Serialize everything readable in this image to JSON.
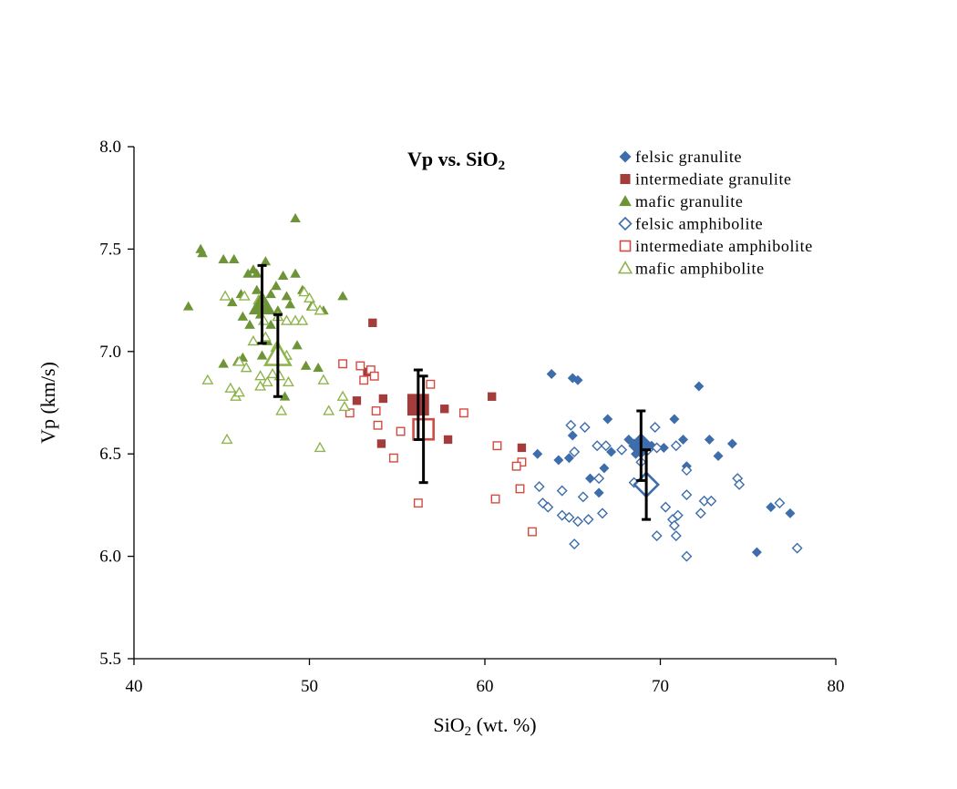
{
  "chart_data": {
    "type": "scatter",
    "title": "Vp vs. SiO",
    "title_sub": "2",
    "xlabel_prefix": "SiO",
    "xlabel_sub": "2",
    "xlabel_suffix": " (wt. %)",
    "ylabel": "Vp (km/s)",
    "xlim": [
      40,
      80
    ],
    "ylim": [
      5.5,
      8.0
    ],
    "x_ticks": [
      "40",
      "50",
      "60",
      "70",
      "80"
    ],
    "y_ticks": [
      "5.5",
      "6.0",
      "6.5",
      "7.0",
      "7.5",
      "8.0"
    ],
    "grid": false,
    "legend_position": "top-right",
    "series": [
      {
        "name": "felsic granulite",
        "marker": "diamond",
        "filled": true,
        "color": "#3d6dab",
        "points": [
          [
            63.8,
            6.89
          ],
          [
            65.0,
            6.87
          ],
          [
            65.3,
            6.86
          ],
          [
            72.2,
            6.83
          ],
          [
            67.0,
            6.67
          ],
          [
            70.8,
            6.67
          ],
          [
            63.0,
            6.5
          ],
          [
            64.2,
            6.47
          ],
          [
            64.8,
            6.48
          ],
          [
            65.0,
            6.59
          ],
          [
            66.0,
            6.38
          ],
          [
            66.5,
            6.31
          ],
          [
            66.8,
            6.43
          ],
          [
            67.2,
            6.51
          ],
          [
            68.2,
            6.57
          ],
          [
            68.5,
            6.55
          ],
          [
            68.6,
            6.5
          ],
          [
            69.0,
            6.52
          ],
          [
            69.5,
            6.54
          ],
          [
            70.2,
            6.53
          ],
          [
            71.3,
            6.57
          ],
          [
            71.5,
            6.44
          ],
          [
            72.8,
            6.57
          ],
          [
            73.3,
            6.49
          ],
          [
            74.1,
            6.55
          ],
          [
            75.5,
            6.02
          ],
          [
            76.3,
            6.24
          ],
          [
            77.4,
            6.21
          ]
        ]
      },
      {
        "name": "intermediate granulite",
        "marker": "square",
        "filled": true,
        "color": "#a33c3a",
        "points": [
          [
            53.6,
            7.14
          ],
          [
            53.3,
            6.9
          ],
          [
            52.7,
            6.76
          ],
          [
            54.2,
            6.77
          ],
          [
            54.1,
            6.55
          ],
          [
            57.7,
            6.72
          ],
          [
            57.9,
            6.57
          ],
          [
            60.4,
            6.78
          ],
          [
            62.1,
            6.53
          ]
        ]
      },
      {
        "name": "mafic granulite",
        "marker": "triangle",
        "filled": true,
        "color": "#6e9438",
        "points": [
          [
            49.2,
            7.65
          ],
          [
            43.8,
            7.5
          ],
          [
            43.9,
            7.48
          ],
          [
            45.1,
            7.45
          ],
          [
            45.7,
            7.45
          ],
          [
            46.8,
            7.4
          ],
          [
            47.5,
            7.44
          ],
          [
            46.5,
            7.38
          ],
          [
            47.0,
            7.38
          ],
          [
            48.5,
            7.37
          ],
          [
            49.2,
            7.38
          ],
          [
            48.1,
            7.32
          ],
          [
            45.6,
            7.24
          ],
          [
            46.1,
            7.28
          ],
          [
            47.0,
            7.3
          ],
          [
            47.8,
            7.28
          ],
          [
            48.7,
            7.27
          ],
          [
            49.6,
            7.3
          ],
          [
            51.9,
            7.27
          ],
          [
            43.1,
            7.22
          ],
          [
            46.2,
            7.17
          ],
          [
            46.6,
            7.13
          ],
          [
            47.2,
            7.18
          ],
          [
            48.2,
            7.2
          ],
          [
            48.9,
            7.23
          ],
          [
            50.1,
            7.22
          ],
          [
            50.8,
            7.2
          ],
          [
            47.6,
            7.05
          ],
          [
            47.8,
            7.13
          ],
          [
            49.3,
            7.03
          ],
          [
            46.2,
            6.97
          ],
          [
            45.9,
            6.95
          ],
          [
            45.1,
            6.94
          ],
          [
            47.3,
            6.98
          ],
          [
            49.8,
            6.93
          ],
          [
            50.5,
            6.92
          ],
          [
            48.6,
            6.78
          ]
        ]
      },
      {
        "name": "felsic amphibolite",
        "marker": "diamond",
        "filled": false,
        "color": "#3d6dab",
        "points": [
          [
            64.9,
            6.64
          ],
          [
            65.7,
            6.63
          ],
          [
            69.7,
            6.63
          ],
          [
            66.4,
            6.54
          ],
          [
            66.9,
            6.54
          ],
          [
            67.8,
            6.52
          ],
          [
            68.8,
            6.56
          ],
          [
            69.3,
            6.52
          ],
          [
            69.8,
            6.53
          ],
          [
            70.9,
            6.54
          ],
          [
            65.1,
            6.51
          ],
          [
            71.5,
            6.42
          ],
          [
            68.9,
            6.46
          ],
          [
            63.1,
            6.34
          ],
          [
            64.4,
            6.32
          ],
          [
            65.6,
            6.29
          ],
          [
            66.5,
            6.38
          ],
          [
            68.5,
            6.36
          ],
          [
            69.2,
            6.33
          ],
          [
            71.5,
            6.3
          ],
          [
            72.5,
            6.27
          ],
          [
            72.9,
            6.27
          ],
          [
            74.4,
            6.38
          ],
          [
            74.5,
            6.35
          ],
          [
            76.8,
            6.26
          ],
          [
            63.3,
            6.26
          ],
          [
            63.6,
            6.24
          ],
          [
            64.4,
            6.2
          ],
          [
            64.8,
            6.19
          ],
          [
            65.3,
            6.17
          ],
          [
            65.9,
            6.18
          ],
          [
            66.7,
            6.21
          ],
          [
            70.3,
            6.24
          ],
          [
            70.7,
            6.18
          ],
          [
            70.8,
            6.15
          ],
          [
            71.0,
            6.2
          ],
          [
            72.3,
            6.21
          ],
          [
            65.1,
            6.06
          ],
          [
            69.8,
            6.1
          ],
          [
            70.9,
            6.1
          ],
          [
            71.5,
            6.0
          ],
          [
            77.8,
            6.04
          ]
        ]
      },
      {
        "name": "intermediate amphibolite",
        "marker": "square",
        "filled": false,
        "color": "#d24b43",
        "points": [
          [
            51.9,
            6.94
          ],
          [
            52.9,
            6.93
          ],
          [
            53.5,
            6.91
          ],
          [
            53.7,
            6.88
          ],
          [
            53.1,
            6.86
          ],
          [
            56.9,
            6.84
          ],
          [
            53.8,
            6.71
          ],
          [
            52.3,
            6.7
          ],
          [
            58.8,
            6.7
          ],
          [
            53.9,
            6.64
          ],
          [
            55.2,
            6.61
          ],
          [
            54.8,
            6.48
          ],
          [
            60.7,
            6.54
          ],
          [
            62.1,
            6.46
          ],
          [
            61.8,
            6.44
          ],
          [
            62.0,
            6.33
          ],
          [
            60.6,
            6.28
          ],
          [
            56.2,
            6.26
          ],
          [
            62.7,
            6.12
          ]
        ]
      },
      {
        "name": "mafic amphibolite",
        "marker": "triangle",
        "filled": false,
        "color": "#8fb44e",
        "points": [
          [
            45.2,
            7.27
          ],
          [
            46.3,
            7.27
          ],
          [
            47.1,
            7.25
          ],
          [
            49.7,
            7.29
          ],
          [
            50.0,
            7.26
          ],
          [
            50.2,
            7.22
          ],
          [
            50.6,
            7.2
          ],
          [
            47.4,
            7.15
          ],
          [
            48.2,
            7.17
          ],
          [
            48.7,
            7.15
          ],
          [
            49.2,
            7.15
          ],
          [
            49.6,
            7.15
          ],
          [
            46.8,
            7.05
          ],
          [
            47.5,
            7.07
          ],
          [
            48.1,
            7.02
          ],
          [
            48.7,
            6.98
          ],
          [
            46.0,
            6.95
          ],
          [
            46.4,
            6.92
          ],
          [
            47.2,
            6.88
          ],
          [
            47.6,
            6.85
          ],
          [
            47.9,
            6.89
          ],
          [
            48.3,
            6.88
          ],
          [
            48.8,
            6.85
          ],
          [
            44.2,
            6.86
          ],
          [
            45.5,
            6.82
          ],
          [
            45.8,
            6.78
          ],
          [
            46.0,
            6.8
          ],
          [
            47.2,
            6.83
          ],
          [
            48.4,
            6.71
          ],
          [
            50.8,
            6.86
          ],
          [
            51.1,
            6.71
          ],
          [
            51.9,
            6.78
          ],
          [
            52.0,
            6.73
          ],
          [
            45.3,
            6.57
          ],
          [
            50.6,
            6.53
          ]
        ]
      }
    ],
    "means": [
      {
        "name": "felsic granulite mean",
        "marker": "diamond",
        "filled": true,
        "color": "#3d6dab",
        "x": 68.9,
        "y": 6.54,
        "err": 0.17
      },
      {
        "name": "felsic amphibolite mean",
        "marker": "diamond",
        "filled": false,
        "color": "#3d6dab",
        "x": 69.2,
        "y": 6.35,
        "err": 0.17
      },
      {
        "name": "intermediate granulite mean",
        "marker": "square",
        "filled": true,
        "color": "#a33c3a",
        "x": 56.2,
        "y": 6.74,
        "err": 0.17
      },
      {
        "name": "intermediate amphibolite mean",
        "marker": "square",
        "filled": false,
        "color": "#d24b43",
        "x": 56.5,
        "y": 6.62,
        "err": 0.26
      },
      {
        "name": "mafic granulite mean",
        "marker": "triangle",
        "filled": true,
        "color": "#6e9438",
        "x": 47.3,
        "y": 7.23,
        "err": 0.19
      },
      {
        "name": "mafic amphibolite mean",
        "marker": "triangle",
        "filled": false,
        "color": "#8fb44e",
        "x": 48.2,
        "y": 6.98,
        "err": 0.2
      }
    ]
  }
}
